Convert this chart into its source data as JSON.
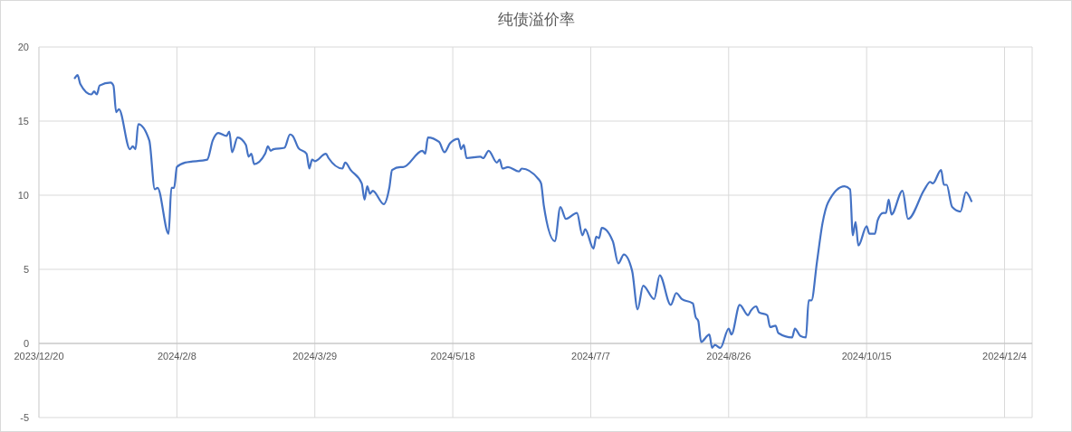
{
  "chart_data": {
    "type": "line",
    "title": "纯债溢价率",
    "x": [
      "2024-01-02",
      "2024-01-03",
      "2024-01-04",
      "2024-01-08",
      "2024-01-09",
      "2024-01-10",
      "2024-01-11",
      "2024-01-15",
      "2024-01-16",
      "2024-01-17",
      "2024-01-18",
      "2024-01-22",
      "2024-01-23",
      "2024-01-24",
      "2024-01-25",
      "2024-01-29",
      "2024-01-31",
      "2024-02-01",
      "2024-02-05",
      "2024-02-06",
      "2024-02-07",
      "2024-02-08",
      "2024-02-11",
      "2024-02-19",
      "2024-02-21",
      "2024-02-23",
      "2024-02-26",
      "2024-02-27",
      "2024-02-28",
      "2024-03-01",
      "2024-03-04",
      "2024-03-05",
      "2024-03-06",
      "2024-03-07",
      "2024-03-11",
      "2024-03-12",
      "2024-03-13",
      "2024-03-14",
      "2024-03-18",
      "2024-03-20",
      "2024-03-21",
      "2024-03-23",
      "2024-03-26",
      "2024-03-27",
      "2024-03-28",
      "2024-03-29",
      "2024-04-02",
      "2024-04-03",
      "2024-04-08",
      "2024-04-09",
      "2024-04-11",
      "2024-04-15",
      "2024-04-16",
      "2024-04-17",
      "2024-04-18",
      "2024-04-19",
      "2024-04-23",
      "2024-04-25",
      "2024-04-26",
      "2024-04-29",
      "2024-04-30",
      "2024-05-07",
      "2024-05-08",
      "2024-05-09",
      "2024-05-13",
      "2024-05-15",
      "2024-05-17",
      "2024-05-20",
      "2024-05-21",
      "2024-05-22",
      "2024-05-23",
      "2024-05-28",
      "2024-05-29",
      "2024-05-31",
      "2024-06-03",
      "2024-06-04",
      "2024-06-05",
      "2024-06-07",
      "2024-06-11",
      "2024-06-12",
      "2024-06-18",
      "2024-06-19",
      "2024-06-20",
      "2024-06-24",
      "2024-06-26",
      "2024-06-28",
      "2024-07-02",
      "2024-07-04",
      "2024-07-05",
      "2024-07-08",
      "2024-07-09",
      "2024-07-10",
      "2024-07-11",
      "2024-07-15",
      "2024-07-17",
      "2024-07-19",
      "2024-07-22",
      "2024-07-24",
      "2024-07-26",
      "2024-07-30",
      "2024-08-01",
      "2024-08-05",
      "2024-08-07",
      "2024-08-09",
      "2024-08-13",
      "2024-08-14",
      "2024-08-15",
      "2024-08-16",
      "2024-08-19",
      "2024-08-20",
      "2024-08-21",
      "2024-08-23",
      "2024-08-26",
      "2024-08-27",
      "2024-08-30",
      "2024-09-02",
      "2024-09-03",
      "2024-09-05",
      "2024-09-06",
      "2024-09-09",
      "2024-09-10",
      "2024-09-12",
      "2024-09-13",
      "2024-09-18",
      "2024-09-19",
      "2024-09-21",
      "2024-09-23",
      "2024-09-24",
      "2024-09-25",
      "2024-09-27",
      "2024-09-29",
      "2024-10-01",
      "2024-10-07",
      "2024-10-09",
      "2024-10-10",
      "2024-10-11",
      "2024-10-12",
      "2024-10-15",
      "2024-10-16",
      "2024-10-18",
      "2024-10-19",
      "2024-10-21",
      "2024-10-22",
      "2024-10-23",
      "2024-10-24",
      "2024-10-28",
      "2024-10-30",
      "2024-11-05",
      "2024-11-07",
      "2024-11-08",
      "2024-11-11",
      "2024-11-12",
      "2024-11-13",
      "2024-11-15",
      "2024-11-18",
      "2024-11-20",
      "2024-11-22"
    ],
    "series": [
      {
        "color": "#4472c4",
        "values": [
          17.9,
          18.1,
          17.5,
          16.8,
          17.0,
          16.8,
          17.4,
          17.6,
          17.4,
          15.6,
          15.8,
          13.1,
          13.3,
          13.1,
          14.8,
          13.7,
          10.4,
          10.5,
          7.4,
          10.5,
          10.5,
          11.9,
          12.2,
          12.4,
          13.7,
          14.2,
          14.0,
          14.3,
          12.9,
          13.9,
          13.4,
          12.6,
          12.8,
          12.1,
          12.8,
          13.3,
          13.0,
          13.1,
          13.2,
          14.1,
          14.0,
          13.2,
          12.8,
          11.8,
          12.4,
          12.3,
          12.8,
          12.5,
          11.8,
          12.2,
          11.7,
          10.8,
          9.7,
          10.6,
          10.1,
          10.3,
          9.4,
          10.5,
          11.7,
          11.9,
          11.9,
          13.0,
          12.8,
          13.9,
          13.6,
          12.9,
          13.5,
          13.8,
          13.1,
          13.4,
          12.5,
          12.6,
          12.5,
          13.0,
          12.2,
          12.4,
          11.8,
          11.9,
          11.6,
          11.8,
          11.1,
          10.8,
          9.3,
          6.9,
          9.2,
          8.4,
          8.8,
          7.3,
          7.7,
          6.4,
          7.2,
          7.1,
          7.8,
          6.9,
          5.4,
          6.0,
          4.9,
          2.3,
          3.9,
          3.0,
          4.6,
          2.6,
          3.4,
          3.0,
          2.7,
          1.8,
          1.5,
          0.1,
          0.6,
          -0.3,
          -0.1,
          -0.3,
          1.0,
          0.6,
          2.6,
          1.9,
          2.2,
          2.5,
          2.1,
          1.9,
          1.1,
          1.2,
          0.7,
          0.4,
          1.0,
          0.5,
          0.4,
          2.9,
          2.9,
          5.5,
          8.1,
          9.5,
          10.6,
          10.4,
          7.3,
          8.2,
          6.6,
          7.9,
          7.4,
          7.4,
          8.3,
          8.8,
          8.8,
          9.7,
          8.7,
          10.3,
          8.4,
          10.4,
          10.9,
          10.8,
          11.7,
          10.7,
          10.7,
          9.2,
          8.9,
          10.2,
          9.6
        ]
      }
    ],
    "xlim": [
      "2023-12-20",
      "2024-12-14"
    ],
    "xticks": [
      {
        "value": "2023-12-20",
        "label": "2023/12/20"
      },
      {
        "value": "2024-02-08",
        "label": "2024/2/8"
      },
      {
        "value": "2024-03-29",
        "label": "2024/3/29"
      },
      {
        "value": "2024-05-18",
        "label": "2024/5/18"
      },
      {
        "value": "2024-07-07",
        "label": "2024/7/7"
      },
      {
        "value": "2024-08-26",
        "label": "2024/8/26"
      },
      {
        "value": "2024-10-15",
        "label": "2024/10/15"
      },
      {
        "value": "2024-12-04",
        "label": "2024/12/4"
      }
    ],
    "ylim": [
      -5,
      20
    ],
    "yticks": [
      -5,
      0,
      5,
      10,
      15,
      20
    ],
    "grid": true,
    "marker": "none",
    "line_style": "solid"
  }
}
